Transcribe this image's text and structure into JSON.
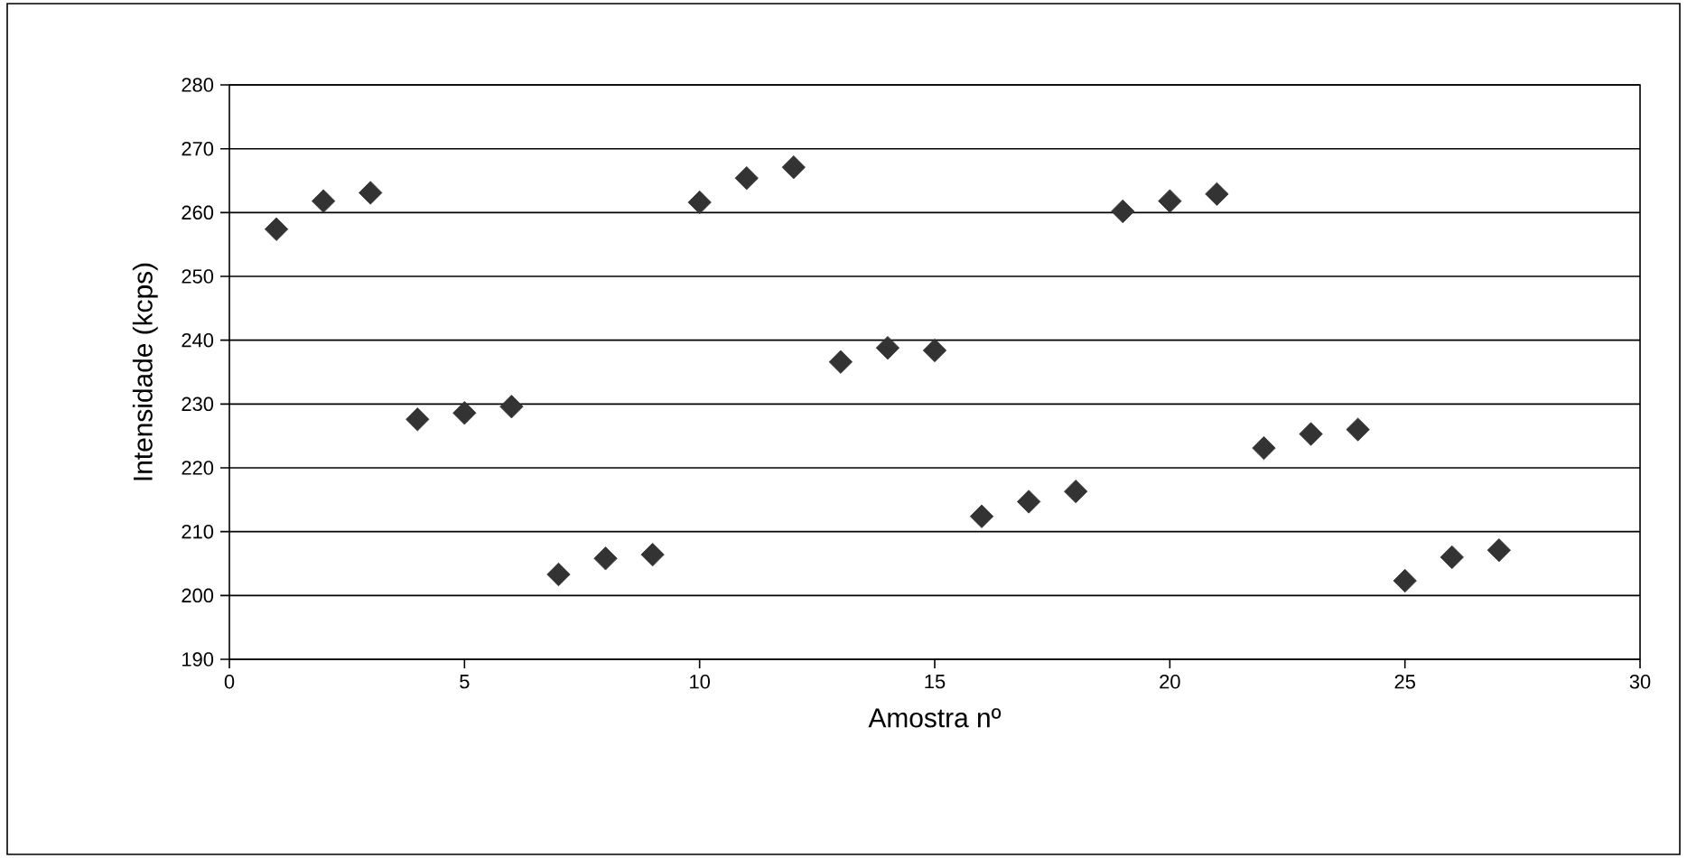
{
  "chart_data": {
    "type": "scatter",
    "xlabel": "Amostra nº",
    "ylabel": "Intensidade (kcps)",
    "x": [
      1,
      2,
      3,
      4,
      5,
      6,
      7,
      8,
      9,
      10,
      11,
      12,
      13,
      14,
      15,
      16,
      17,
      18,
      19,
      20,
      21,
      22,
      23,
      24,
      25,
      26,
      27
    ],
    "series": [
      {
        "color": "#333333",
        "values": [
          257.4,
          261.8,
          263.1,
          227.6,
          228.6,
          229.6,
          203.3,
          205.8,
          206.4,
          261.6,
          265.4,
          267.1,
          236.6,
          238.8,
          238.4,
          212.4,
          214.7,
          216.3,
          260.2,
          261.8,
          262.9,
          223.1,
          225.3,
          226.0,
          202.3,
          206.0,
          207.1
        ]
      }
    ],
    "xlim": [
      0,
      30
    ],
    "xticks": [
      0,
      5,
      10,
      15,
      20,
      25,
      30
    ],
    "ylim": [
      190,
      280
    ],
    "yticks": [
      190,
      200,
      210,
      220,
      230,
      240,
      250,
      260,
      270,
      280
    ],
    "grid": "y",
    "marker": "diamond"
  }
}
